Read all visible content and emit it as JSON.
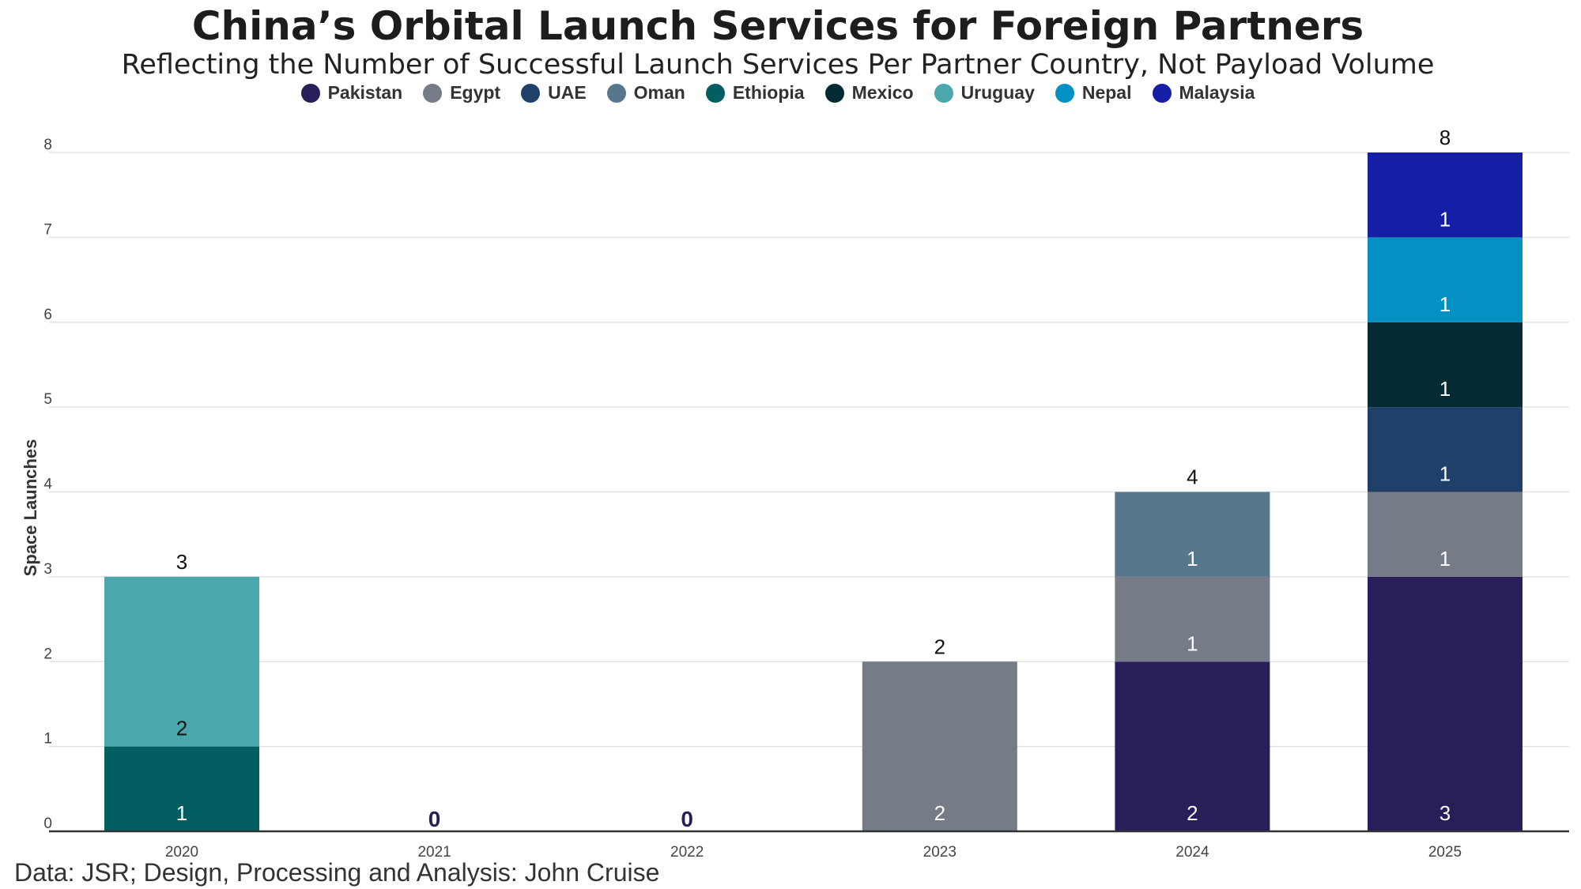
{
  "title": "China’s Orbital Launch Services for Foreign Partners",
  "subtitle": "Reflecting the Number of Successful Launch Services Per Partner Country, Not Payload Volume",
  "source": "Data: JSR; Design, Processing and Analysis: John Cruise",
  "chart_data": {
    "type": "bar",
    "stacked": true,
    "title": "China’s Orbital Launch Services for Foreign Partners",
    "subtitle": "Reflecting the Number of Successful Launch Services Per Partner Country, Not Payload Volume",
    "xlabel": "",
    "ylabel": "Space Launches",
    "ylim": [
      0,
      8
    ],
    "yticks": [
      0,
      1,
      2,
      3,
      4,
      5,
      6,
      7,
      8
    ],
    "grid": true,
    "legend_position": "top",
    "categories": [
      "2020",
      "2021",
      "2022",
      "2023",
      "2024",
      "2025"
    ],
    "series": [
      {
        "name": "Pakistan",
        "color": "#281e5a",
        "values": [
          0,
          0,
          0,
          0,
          2,
          3
        ]
      },
      {
        "name": "Egypt",
        "color": "#767b88",
        "values": [
          0,
          0,
          0,
          2,
          1,
          1
        ]
      },
      {
        "name": "UAE",
        "color": "#1f4068",
        "values": [
          0,
          0,
          0,
          0,
          0,
          1
        ]
      },
      {
        "name": "Oman",
        "color": "#58778d",
        "values": [
          0,
          0,
          0,
          0,
          1,
          0
        ]
      },
      {
        "name": "Ethiopia",
        "color": "#025e61",
        "values": [
          1,
          0,
          0,
          0,
          0,
          0
        ]
      },
      {
        "name": "Mexico",
        "color": "#042a33",
        "values": [
          0,
          0,
          0,
          0,
          0,
          1
        ]
      },
      {
        "name": "Uruguay",
        "color": "#4aa8ad",
        "values": [
          2,
          0,
          0,
          0,
          0,
          0
        ]
      },
      {
        "name": "Nepal",
        "color": "#0391c3",
        "values": [
          0,
          0,
          0,
          0,
          0,
          1
        ]
      },
      {
        "name": "Malaysia",
        "color": "#161ea6",
        "values": [
          0,
          0,
          0,
          0,
          0,
          1
        ]
      }
    ],
    "segment_labels": [
      {
        "category": "2020",
        "series": "Ethiopia",
        "text": "1",
        "style": "inside"
      },
      {
        "category": "2020",
        "series": "Uruguay",
        "text": "2",
        "style": "above-base"
      },
      {
        "category": "2021",
        "series": "Pakistan",
        "text": "0",
        "style": "zero"
      },
      {
        "category": "2022",
        "series": "Pakistan",
        "text": "0",
        "style": "zero"
      },
      {
        "category": "2023",
        "series": "Egypt",
        "text": "2",
        "style": "inside"
      },
      {
        "category": "2024",
        "series": "Pakistan",
        "text": "2",
        "style": "inside"
      },
      {
        "category": "2024",
        "series": "Egypt",
        "text": "1",
        "style": "inside"
      },
      {
        "category": "2024",
        "series": "Oman",
        "text": "1",
        "style": "inside"
      },
      {
        "category": "2025",
        "series": "Pakistan",
        "text": "3",
        "style": "inside"
      },
      {
        "category": "2025",
        "series": "Egypt",
        "text": "1",
        "style": "inside"
      },
      {
        "category": "2025",
        "series": "UAE",
        "text": "1",
        "style": "inside"
      },
      {
        "category": "2025",
        "series": "Mexico",
        "text": "1",
        "style": "inside"
      },
      {
        "category": "2025",
        "series": "Nepal",
        "text": "1",
        "style": "inside"
      },
      {
        "category": "2025",
        "series": "Malaysia",
        "text": "1",
        "style": "inside"
      }
    ],
    "totals": [
      {
        "category": "2020",
        "text": "3"
      },
      {
        "category": "2023",
        "text": "2"
      },
      {
        "category": "2024",
        "text": "4"
      },
      {
        "category": "2025",
        "text": "8"
      }
    ]
  }
}
